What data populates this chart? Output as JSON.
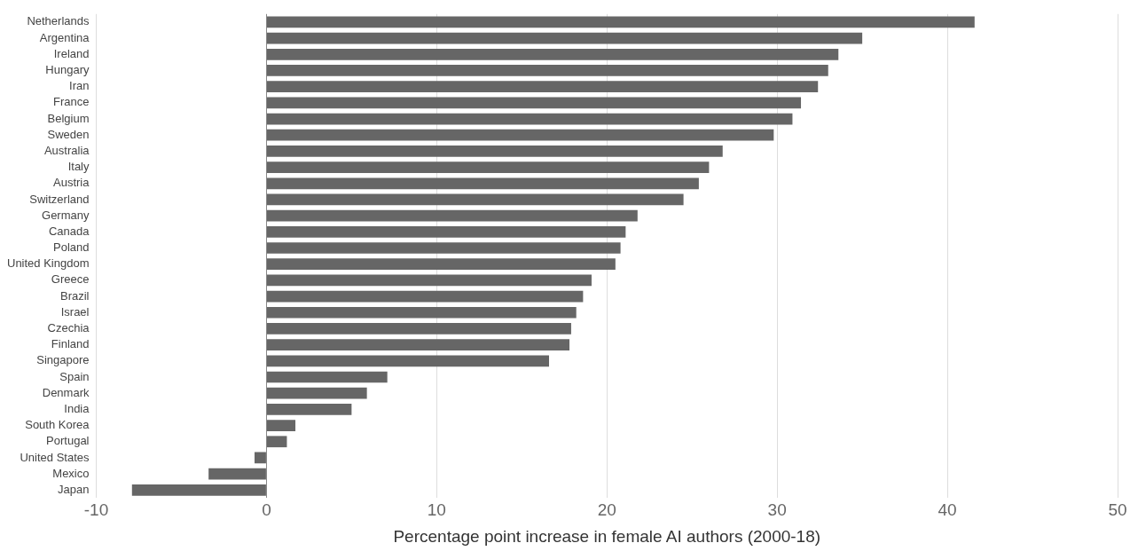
{
  "chart_data": {
    "type": "bar",
    "orientation": "horizontal",
    "xlabel": "Percentage point increase in female AI authors (2000-18)",
    "categories": [
      "Netherlands",
      "Argentina",
      "Ireland",
      "Hungary",
      "Iran",
      "France",
      "Belgium",
      "Sweden",
      "Australia",
      "Italy",
      "Austria",
      "Switzerland",
      "Germany",
      "Canada",
      "Poland",
      "United Kingdom",
      "Greece",
      "Brazil",
      "Israel",
      "Czechia",
      "Finland",
      "Singapore",
      "Spain",
      "Denmark",
      "India",
      "South Korea",
      "Portugal",
      "United States",
      "Mexico",
      "Japan"
    ],
    "values": [
      41.6,
      35.0,
      33.6,
      33.0,
      32.4,
      31.4,
      30.9,
      29.8,
      26.8,
      26.0,
      25.4,
      24.5,
      21.8,
      21.1,
      20.8,
      20.5,
      19.1,
      18.6,
      18.2,
      17.9,
      17.8,
      16.6,
      7.1,
      5.9,
      5.0,
      1.7,
      1.2,
      -0.7,
      -3.4,
      -7.9
    ],
    "color": "#666666",
    "xlim": [
      -10,
      50
    ],
    "xticks": [
      -10,
      0,
      10,
      20,
      30,
      40,
      50
    ],
    "grid": "x",
    "legend": false
  }
}
